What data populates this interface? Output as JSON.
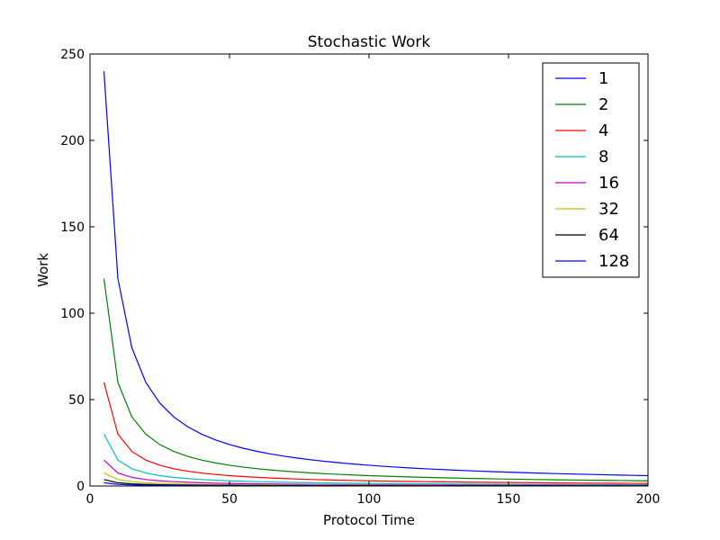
{
  "chart_data": {
    "type": "line",
    "title": "Stochastic Work",
    "xlabel": "Protocol Time",
    "ylabel": "Work",
    "xlim": [
      0,
      200
    ],
    "ylim": [
      0,
      250
    ],
    "xticks": [
      0,
      50,
      100,
      150,
      200
    ],
    "yticks": [
      0,
      50,
      100,
      150,
      200,
      250
    ],
    "grid": false,
    "legend_position": "top-right",
    "x": [
      5,
      10,
      15,
      20,
      25,
      30,
      35,
      40,
      45,
      50,
      55,
      60,
      65,
      70,
      75,
      80,
      85,
      90,
      95,
      100,
      105,
      110,
      115,
      120,
      125,
      130,
      135,
      140,
      145,
      150,
      155,
      160,
      165,
      170,
      175,
      180,
      185,
      190,
      195,
      200
    ],
    "series": [
      {
        "name": "1",
        "color": "#0000ff",
        "numerator": 1200
      },
      {
        "name": "2",
        "color": "#008000",
        "numerator": 600
      },
      {
        "name": "4",
        "color": "#ff0000",
        "numerator": 300
      },
      {
        "name": "8",
        "color": "#00bfbf",
        "numerator": 150
      },
      {
        "name": "16",
        "color": "#bf00bf",
        "numerator": 75
      },
      {
        "name": "32",
        "color": "#bfbf00",
        "numerator": 37.5
      },
      {
        "name": "64",
        "color": "#000000",
        "numerator": 18.75
      },
      {
        "name": "128",
        "color": "#0000ff",
        "numerator": 9.375
      }
    ]
  }
}
